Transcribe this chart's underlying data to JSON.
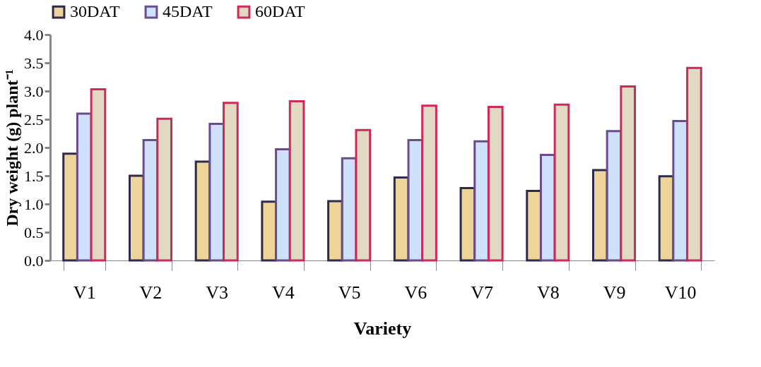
{
  "chart_data": {
    "type": "bar",
    "xlabel": "Variety",
    "ylabel": "Dry weight (g) plant⁻¹",
    "categories": [
      "V1",
      "V2",
      "V3",
      "V4",
      "V5",
      "V6",
      "V7",
      "V8",
      "V9",
      "V10"
    ],
    "series": [
      {
        "name": "30DAT",
        "color": "#efd49a",
        "values": [
          1.89,
          1.5,
          1.75,
          1.04,
          1.05,
          1.47,
          1.28,
          1.23,
          1.6,
          1.49
        ]
      },
      {
        "name": "45DAT",
        "color": "#cfe0fb",
        "values": [
          2.6,
          2.13,
          2.42,
          1.97,
          1.81,
          2.13,
          2.11,
          1.87,
          2.29,
          2.47
        ]
      },
      {
        "name": "60DAT",
        "color": "#e2d9c3",
        "values": [
          3.03,
          2.51,
          2.79,
          2.82,
          2.31,
          2.74,
          2.72,
          2.76,
          3.08,
          3.41
        ]
      }
    ],
    "ylim": [
      0,
      4
    ],
    "yticks": [
      {
        "value": 0,
        "label": "0.0"
      },
      0.5,
      {
        "value": 1,
        "label": "1.0"
      },
      1.5,
      {
        "value": 2,
        "label": "2.0"
      },
      2.5,
      {
        "value": 3,
        "label": "3.0"
      },
      3.5,
      {
        "value": 4,
        "label": "4.0"
      }
    ],
    "grid": false,
    "legend": "top"
  }
}
